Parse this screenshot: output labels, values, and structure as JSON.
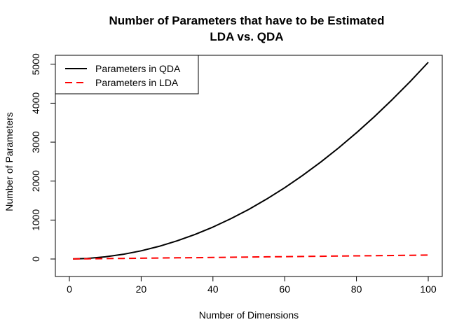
{
  "chart_data": {
    "type": "line",
    "title": "Number of Parameters that have to be Estimated",
    "subtitle": "LDA vs. QDA",
    "xlabel": "Number of Dimensions",
    "ylabel": "Number of Parameters",
    "xlim": [
      0,
      100
    ],
    "ylim": [
      0,
      5050
    ],
    "xticks": [
      0,
      20,
      40,
      60,
      80,
      100
    ],
    "yticks": [
      0,
      1000,
      2000,
      3000,
      4000,
      5000
    ],
    "grid": false,
    "legend_position": "top-left",
    "x": [
      1,
      5,
      10,
      15,
      20,
      25,
      30,
      35,
      40,
      45,
      50,
      55,
      60,
      65,
      70,
      75,
      80,
      85,
      90,
      95,
      100
    ],
    "series": [
      {
        "name": "Parameters in QDA",
        "color": "#000000",
        "style": "solid",
        "values": [
          1,
          15,
          55,
          120,
          210,
          325,
          465,
          630,
          820,
          1035,
          1275,
          1540,
          1830,
          2145,
          2485,
          2850,
          3240,
          3655,
          4095,
          4560,
          5050
        ]
      },
      {
        "name": "Parameters in LDA",
        "color": "#ff0000",
        "style": "dashed",
        "values": [
          1,
          5,
          10,
          15,
          20,
          25,
          30,
          35,
          40,
          45,
          50,
          55,
          60,
          65,
          70,
          75,
          80,
          85,
          90,
          95,
          100
        ]
      }
    ]
  }
}
